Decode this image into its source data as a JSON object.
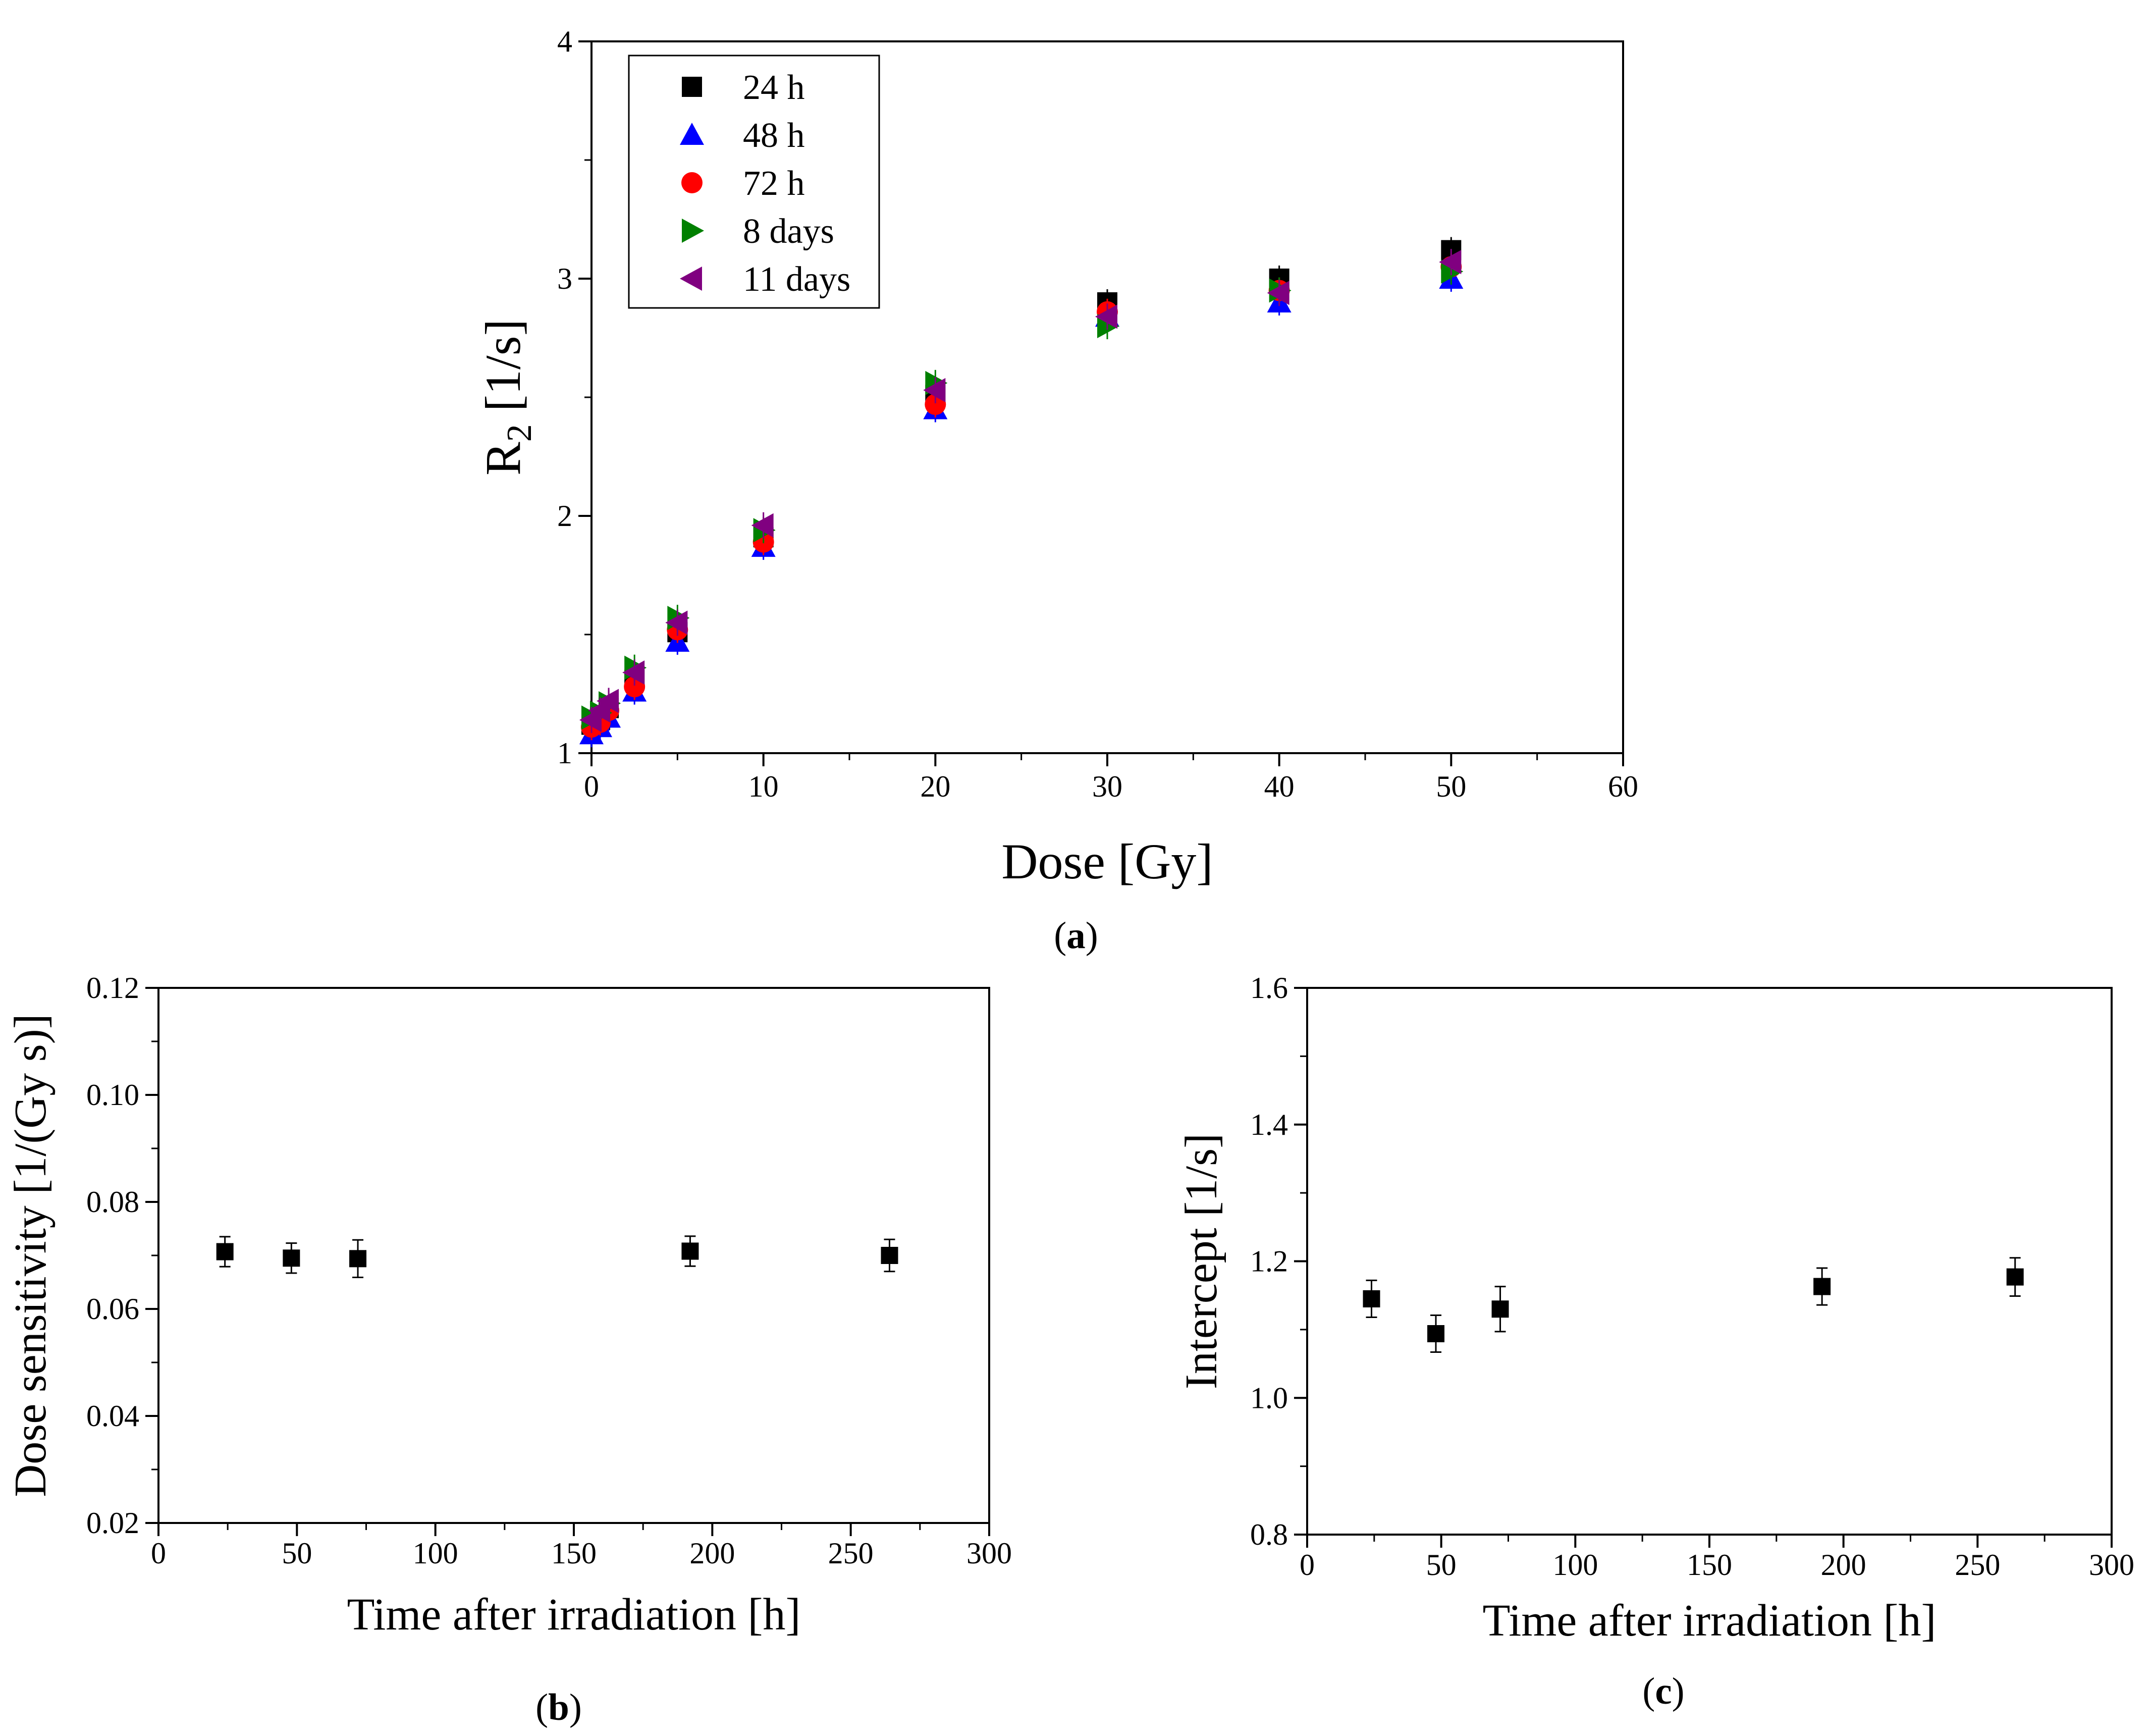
{
  "chart_data": [
    {
      "panel": "a",
      "panel_label": "a",
      "type": "scatter",
      "xlabel": "Dose [Gy]",
      "ylabel": "R",
      "ylabel_sub": "2",
      "ylabel_unit": " [1/s]",
      "xlim": [
        0,
        60
      ],
      "ylim": [
        1,
        4
      ],
      "xticks": [
        0,
        10,
        20,
        30,
        40,
        50,
        60
      ],
      "yticks": [
        1,
        2,
        3,
        4
      ],
      "legend_position": "top-left",
      "x": [
        0,
        0.5,
        1,
        2.5,
        5,
        10,
        20,
        30,
        40,
        50
      ],
      "series": [
        {
          "name": "24 h",
          "marker": "square",
          "color": "#000000",
          "values": [
            1.12,
            1.14,
            1.19,
            1.31,
            1.51,
            1.91,
            2.51,
            2.9,
            3.0,
            3.12
          ]
        },
        {
          "name": "48 h",
          "marker": "triangle-up",
          "color": "#0000ff",
          "values": [
            1.08,
            1.11,
            1.15,
            1.26,
            1.47,
            1.87,
            2.45,
            2.84,
            2.9,
            3.0
          ]
        },
        {
          "name": "72 h",
          "marker": "circle",
          "color": "#ff0000",
          "values": [
            1.11,
            1.13,
            1.18,
            1.28,
            1.52,
            1.89,
            2.47,
            2.86,
            2.95,
            3.05
          ]
        },
        {
          "name": "8 days",
          "marker": "triangle-right",
          "color": "#008000",
          "values": [
            1.15,
            1.17,
            1.21,
            1.36,
            1.57,
            1.94,
            2.56,
            2.8,
            2.95,
            3.03
          ]
        },
        {
          "name": "11 days",
          "marker": "triangle-left",
          "color": "#800080",
          "values": [
            1.14,
            1.18,
            1.22,
            1.34,
            1.55,
            1.96,
            2.53,
            2.84,
            2.94,
            3.07
          ]
        }
      ]
    },
    {
      "panel": "b",
      "panel_label": "b",
      "type": "scatter",
      "xlabel": "Time after irradiation [h]",
      "ylabel": "Dose sensitivity [1/(Gy s)]",
      "xlim": [
        0,
        300
      ],
      "ylim": [
        0.02,
        0.12
      ],
      "xticks": [
        0,
        50,
        100,
        150,
        200,
        250,
        300
      ],
      "yticks": [
        0.02,
        0.04,
        0.06,
        0.08,
        0.1,
        0.12
      ],
      "ytick_decimals": 2,
      "x": [
        24,
        48,
        72,
        192,
        264
      ],
      "series": [
        {
          "name": "Dose sensitivity",
          "marker": "square",
          "color": "#000000",
          "values": [
            0.0707,
            0.0695,
            0.0694,
            0.0708,
            0.07
          ],
          "errors": [
            0.0028,
            0.0028,
            0.0035,
            0.0028,
            0.003
          ]
        }
      ]
    },
    {
      "panel": "c",
      "panel_label": "c",
      "type": "scatter",
      "xlabel": "Time after irradiation [h]",
      "ylabel": "Intercept [1/s]",
      "xlim": [
        0,
        300
      ],
      "ylim": [
        0.8,
        1.6
      ],
      "xticks": [
        0,
        50,
        100,
        150,
        200,
        250,
        300
      ],
      "yticks": [
        0.8,
        1.0,
        1.2,
        1.4,
        1.6
      ],
      "ytick_decimals": 1,
      "x": [
        24,
        48,
        72,
        192,
        264
      ],
      "series": [
        {
          "name": "Intercept",
          "marker": "square",
          "color": "#000000",
          "values": [
            1.145,
            1.094,
            1.13,
            1.163,
            1.177
          ],
          "errors": [
            0.027,
            0.027,
            0.033,
            0.027,
            0.028
          ]
        }
      ]
    }
  ]
}
